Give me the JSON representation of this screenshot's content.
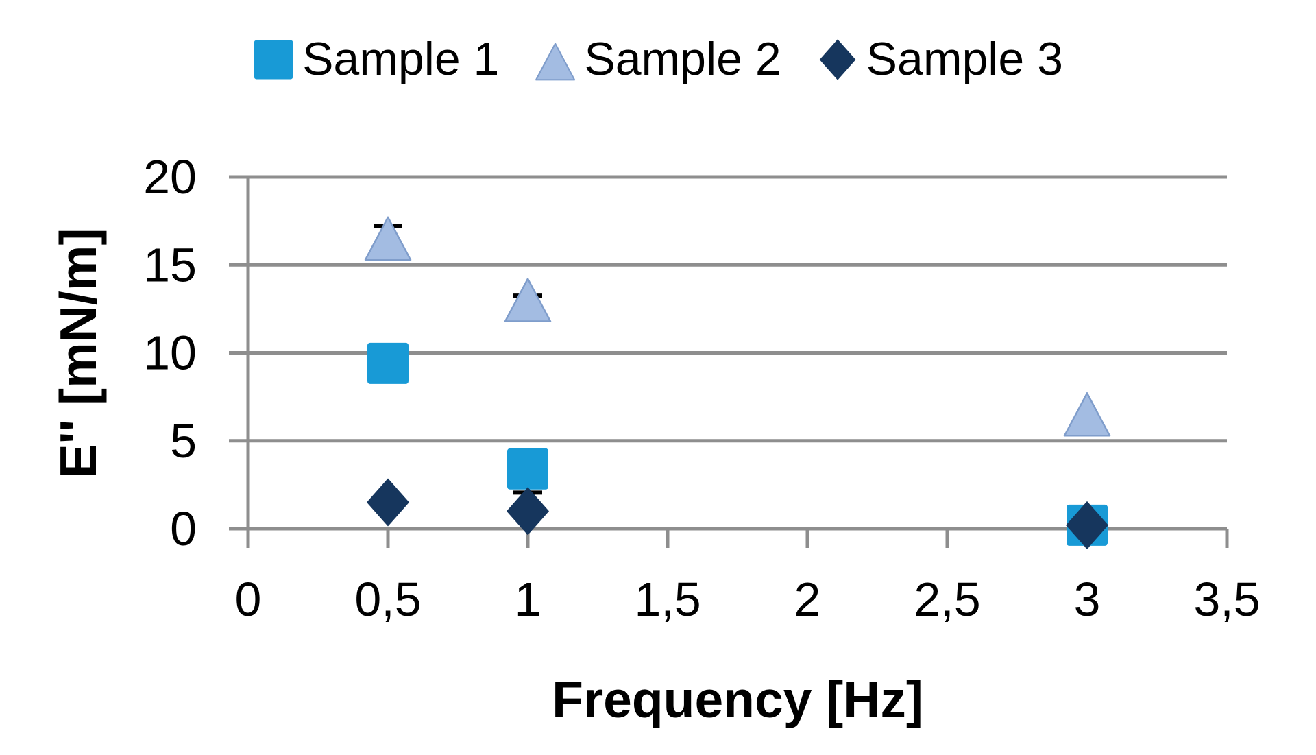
{
  "chart_data": {
    "type": "scatter",
    "title": "",
    "xlabel": "Frequency [Hz]",
    "ylabel": "E'' [mN/m]",
    "xlim": [
      0,
      3.5
    ],
    "ylim": [
      0,
      20
    ],
    "grid": "horizontal",
    "legend_position": "top",
    "decimal_separator": ",",
    "x_ticks": [
      {
        "value": 0,
        "label": "0"
      },
      {
        "value": 0.5,
        "label": "0,5"
      },
      {
        "value": 1,
        "label": "1"
      },
      {
        "value": 1.5,
        "label": "1,5"
      },
      {
        "value": 2,
        "label": "2"
      },
      {
        "value": 2.5,
        "label": "2,5"
      },
      {
        "value": 3,
        "label": "3"
      },
      {
        "value": 3.5,
        "label": "3,5"
      }
    ],
    "y_ticks": [
      {
        "value": 0,
        "label": "0"
      },
      {
        "value": 5,
        "label": "5"
      },
      {
        "value": 10,
        "label": "10"
      },
      {
        "value": 15,
        "label": "15"
      },
      {
        "value": 20,
        "label": "20"
      }
    ],
    "x": [
      0.5,
      1,
      3
    ],
    "series": [
      {
        "name": "Sample 1",
        "marker": "square",
        "color": "#189AD6",
        "values": [
          9.4,
          3.4,
          0.2
        ],
        "error_plus": [
          0,
          0,
          0
        ],
        "error_minus": [
          0,
          1.35,
          0
        ]
      },
      {
        "name": "Sample 2",
        "marker": "triangle",
        "color": "#A3BCE2",
        "edge_color": "#7F9DCB",
        "values": [
          16.5,
          13.0,
          6.5
        ],
        "error_plus": [
          0.7,
          0.25,
          0
        ],
        "error_minus": [
          0,
          0,
          0.35
        ]
      },
      {
        "name": "Sample 3",
        "marker": "diamond",
        "color": "#16365D",
        "values": [
          1.5,
          1.0,
          0.2
        ],
        "error_plus": [
          0,
          0,
          0
        ],
        "error_minus": [
          0,
          0,
          0
        ]
      }
    ],
    "colors": {
      "gridline": "#8E8E8E",
      "axis": "#8E8E8E",
      "error_bar": "#000000",
      "text": "#000000",
      "background": "#FFFFFF"
    }
  }
}
